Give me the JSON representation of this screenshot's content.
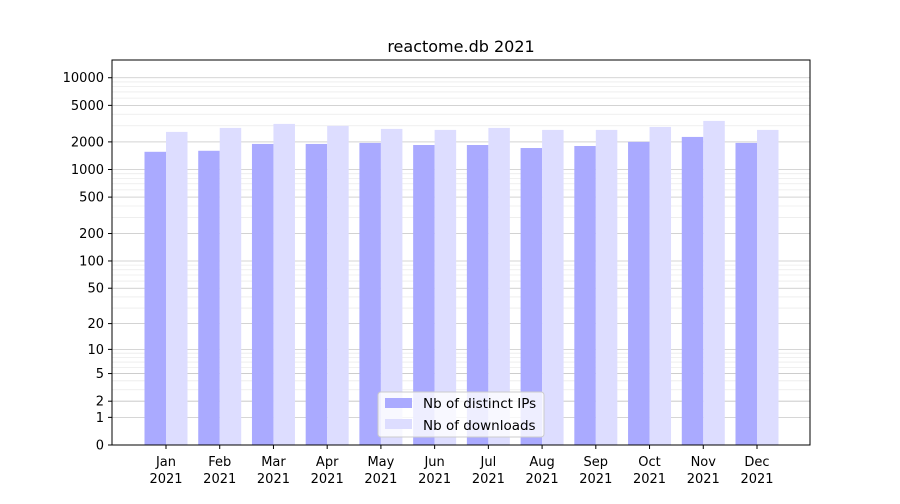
{
  "chart_data": {
    "type": "bar",
    "title": "reactome.db 2021",
    "xlabel": "",
    "ylabel": "",
    "yscale": "log(1+y)",
    "ylim": [
      0,
      15600
    ],
    "yticks": [
      0,
      1,
      2,
      5,
      10,
      20,
      50,
      100,
      200,
      500,
      1000,
      2000,
      5000,
      10000
    ],
    "grid": true,
    "legend_position": "bottom-center",
    "categories": [
      "Jan\n2021",
      "Feb\n2021",
      "Mar\n2021",
      "Apr\n2021",
      "May\n2021",
      "Jun\n2021",
      "Jul\n2021",
      "Aug\n2021",
      "Sep\n2021",
      "Oct\n2021",
      "Nov\n2021",
      "Dec\n2021"
    ],
    "series": [
      {
        "name": "Nb of distinct IPs",
        "color": "#aaaaff",
        "values": [
          1560,
          1600,
          1900,
          1900,
          1950,
          1850,
          1850,
          1715,
          1805,
          2000,
          2265,
          1950
        ]
      },
      {
        "name": "Nb of downloads",
        "color": "#ddddff",
        "values": [
          2570,
          2840,
          3140,
          2990,
          2770,
          2700,
          2840,
          2700,
          2700,
          2910,
          3385,
          2700
        ]
      }
    ]
  }
}
